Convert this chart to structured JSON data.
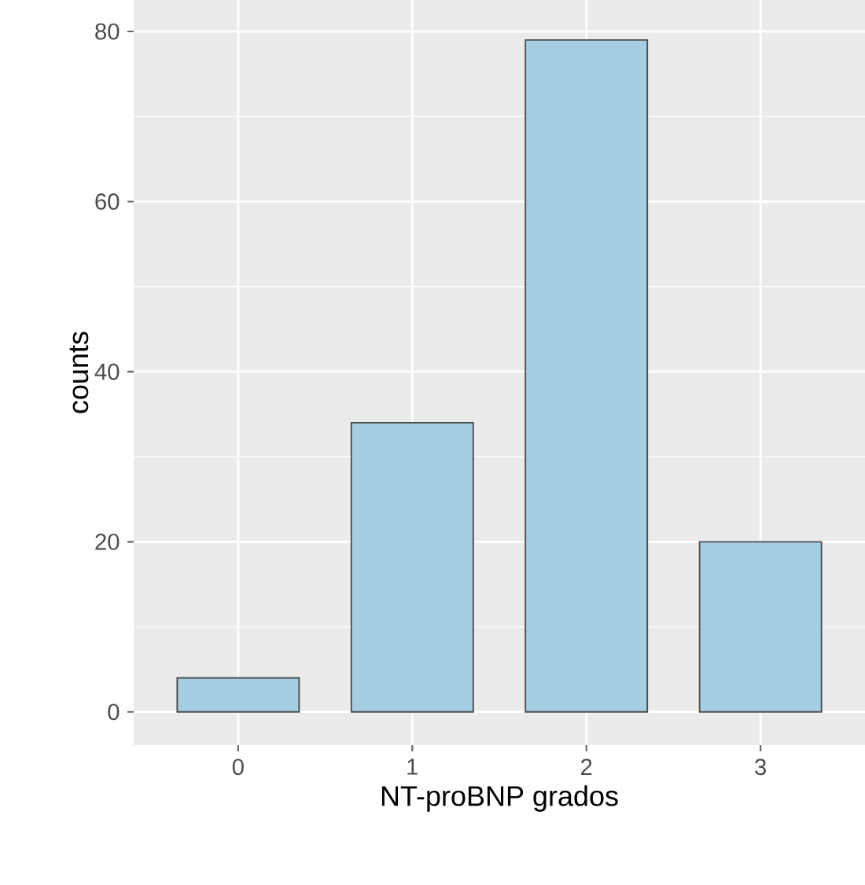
{
  "chart_data": {
    "type": "bar",
    "xlabel": "NT-proBNP grados",
    "ylabel": "counts",
    "categories": [
      "0",
      "1",
      "2",
      "3"
    ],
    "values": [
      4,
      34,
      79,
      20
    ],
    "color": "#a6cee3",
    "ylim": [
      -3.9,
      83.7
    ],
    "yticks": [
      0,
      20,
      40,
      60,
      80
    ],
    "grid": true
  }
}
